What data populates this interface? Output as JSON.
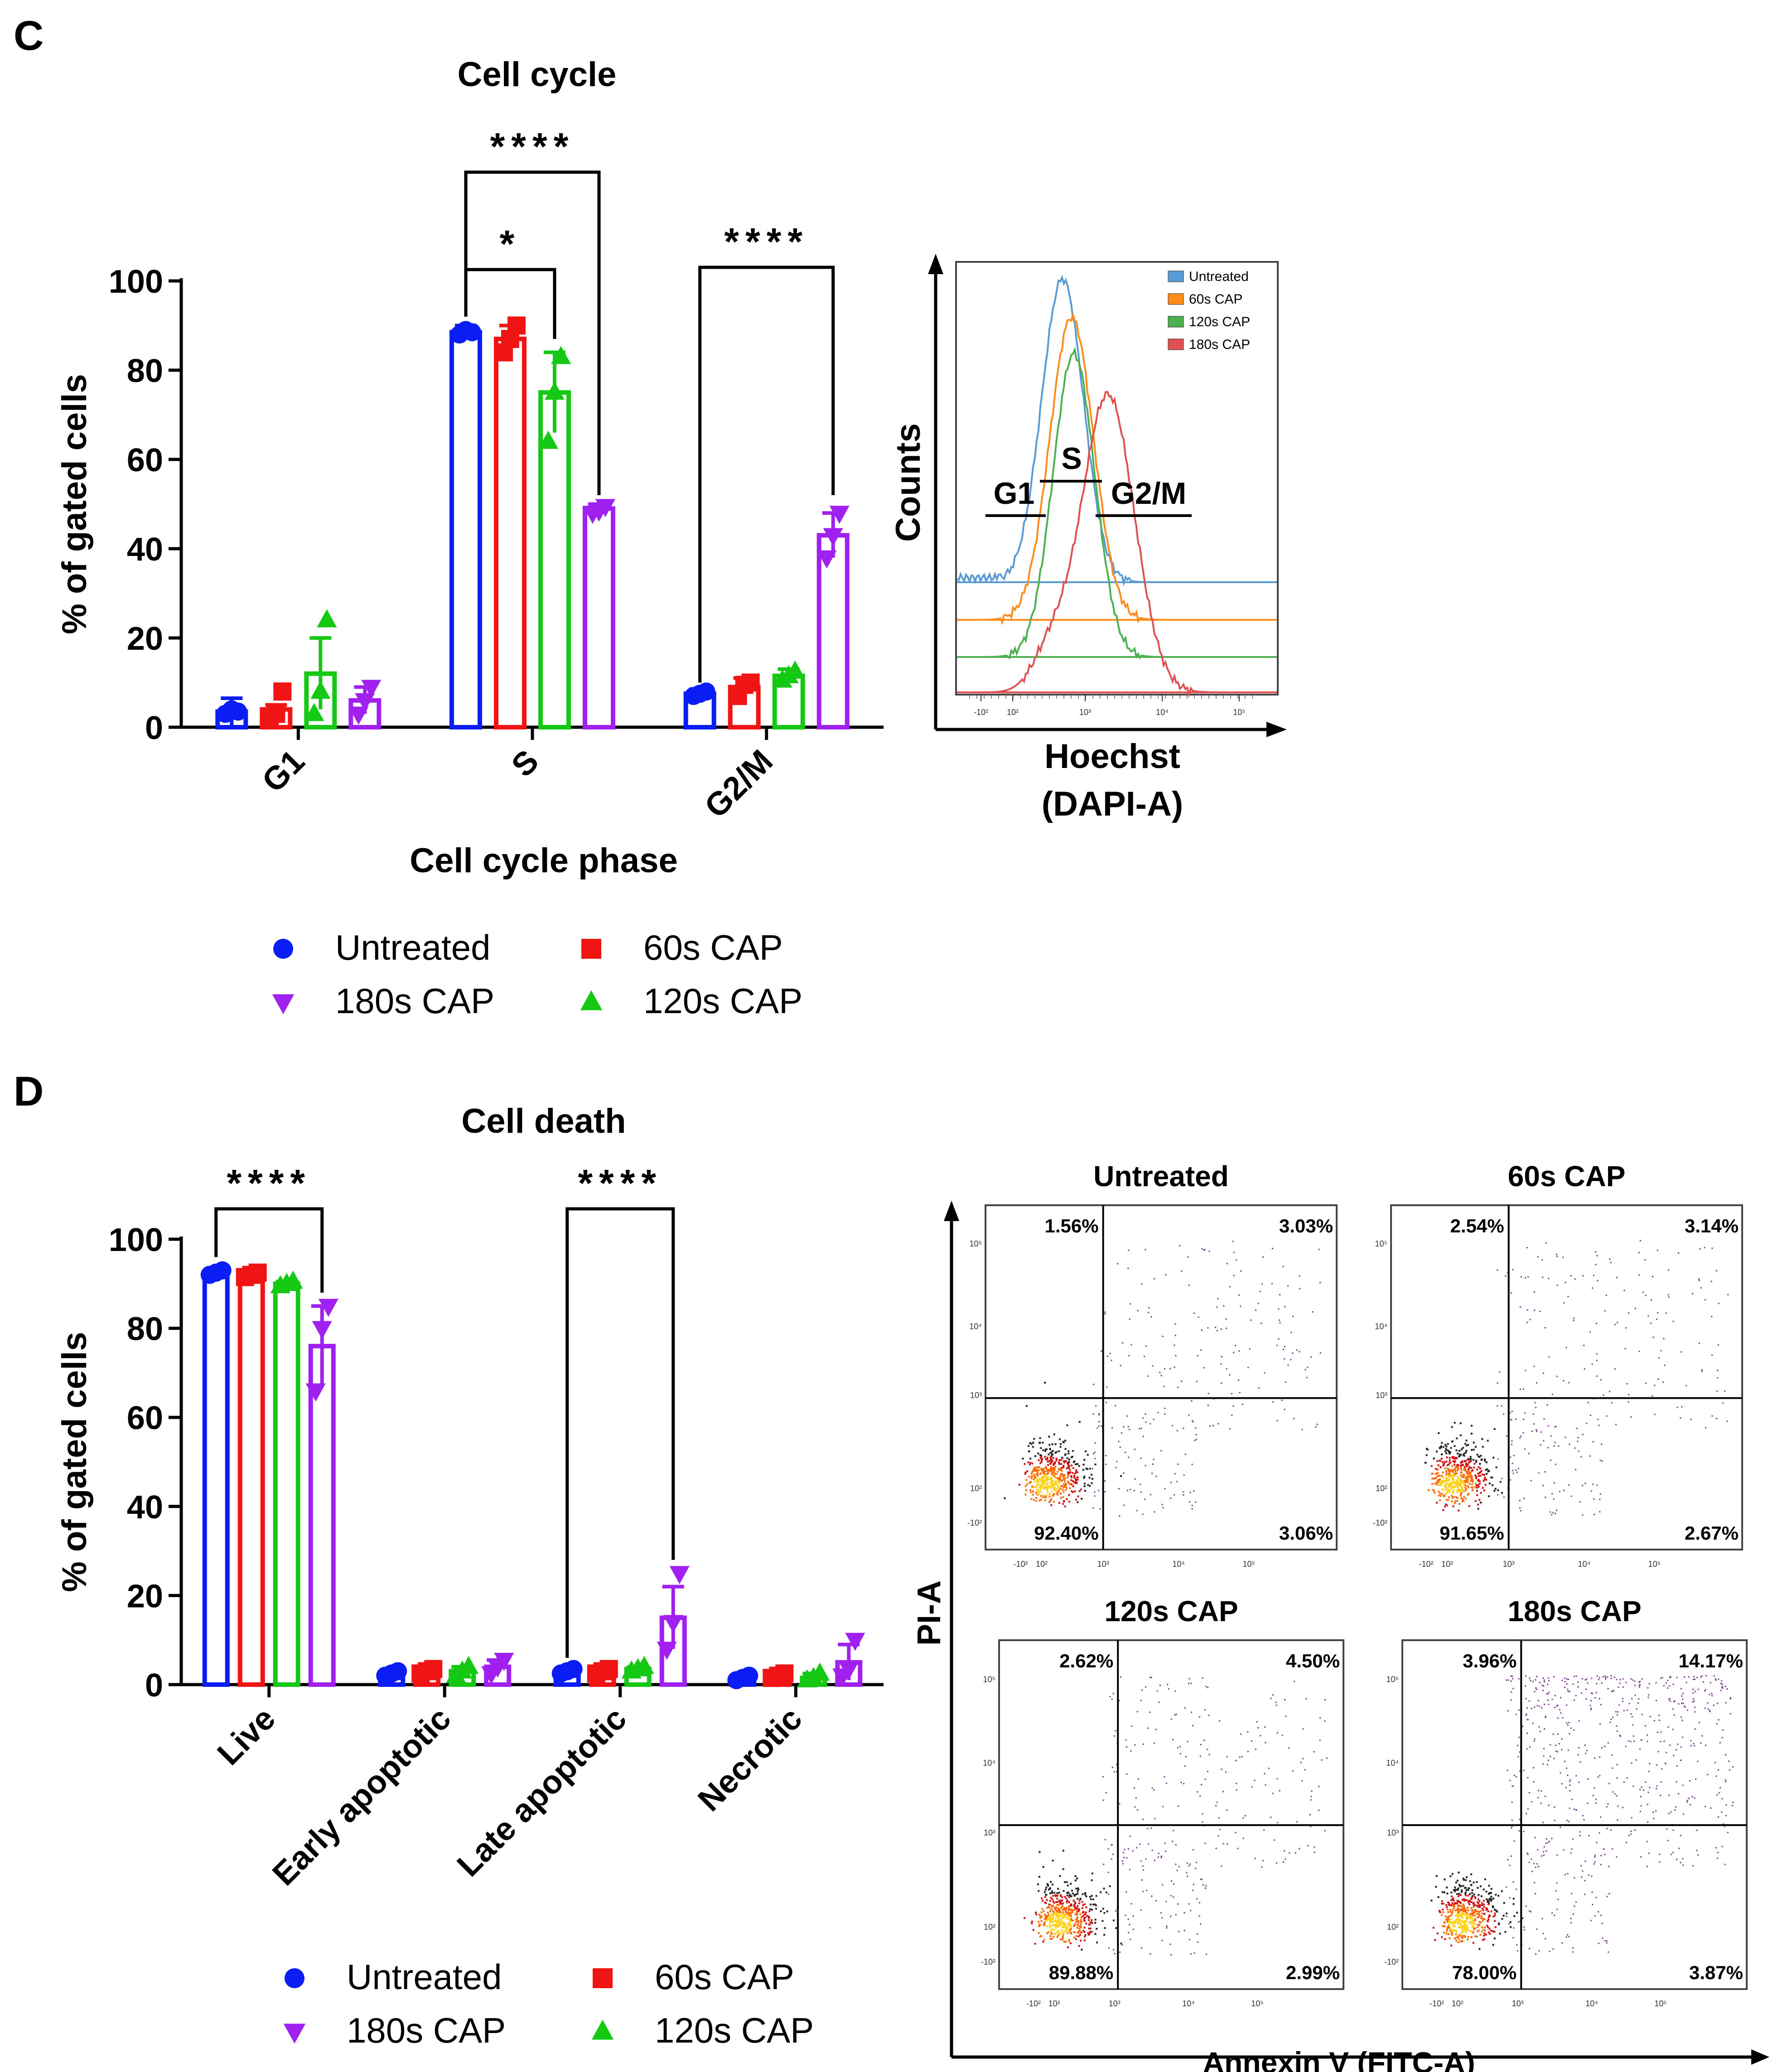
{
  "colors": {
    "untreated": "#0a1df5",
    "cap60": "#f01414",
    "cap120": "#14c814",
    "cap180": "#a020f0",
    "hist_untreated": "#5b9bd5",
    "hist_60": "#ff8c1a",
    "hist_120": "#4caf50",
    "hist_180": "#e05050"
  },
  "panels": {
    "c": {
      "letter": "C"
    },
    "d": {
      "letter": "D"
    }
  },
  "legend": [
    "Untreated",
    "60s CAP",
    "180s CAP",
    "120s CAP"
  ],
  "chart_data": [
    {
      "id": "cell-cycle",
      "type": "bar",
      "title": "Cell cycle",
      "xlabel": "Cell cycle phase",
      "ylabel": "% of gated cells",
      "ylim": [
        0,
        100
      ],
      "yticks": [
        0,
        20,
        40,
        60,
        80,
        100
      ],
      "categories": [
        "G1",
        "S",
        "G2/M"
      ],
      "series": [
        {
          "name": "Untreated",
          "values": [
            3.5,
            88.5,
            7.5
          ],
          "points": [
            [
              3,
              4,
              3.5
            ],
            [
              88,
              89,
              88.5
            ],
            [
              7,
              7.5,
              8
            ]
          ]
        },
        {
          "name": "60s CAP",
          "values": [
            4,
            87,
            9
          ],
          "points": [
            [
              2,
              3,
              8
            ],
            [
              84,
              87,
              90
            ],
            [
              7,
              9.5,
              10
            ]
          ]
        },
        {
          "name": "120s CAP",
          "values": [
            12,
            75,
            11.5
          ],
          "points": [
            [
              3,
              8,
              24
            ],
            [
              64,
              75,
              83
            ],
            [
              10.5,
              11.5,
              12.5
            ]
          ]
        },
        {
          "name": "180s CAP",
          "values": [
            6,
            49,
            43
          ],
          "points": [
            [
              3,
              6,
              9
            ],
            [
              48,
              48.5,
              49.5
            ],
            [
              38,
              43,
              48
            ]
          ]
        }
      ],
      "errors": [
        [
          3,
          1.5,
          1
        ],
        [
          1,
          3,
          2
        ],
        [
          8,
          9,
          1.5
        ],
        [
          3,
          1,
          5
        ]
      ],
      "significance": [
        {
          "label": "****",
          "from": "Untreated",
          "to": "180s CAP",
          "category": "S"
        },
        {
          "label": "*",
          "from": "Untreated",
          "to": "120s CAP",
          "category": "S"
        },
        {
          "label": "****",
          "from": "Untreated",
          "to": "180s CAP",
          "category": "G2/M"
        }
      ]
    },
    {
      "id": "cell-death",
      "type": "bar",
      "title": "Cell death",
      "xlabel": "",
      "ylabel": "% of gated cells",
      "ylim": [
        0,
        100
      ],
      "yticks": [
        0,
        20,
        40,
        60,
        80,
        100
      ],
      "categories": [
        "Live",
        "Early apoptotic",
        "Late apoptotic",
        "Necrotic"
      ],
      "series": [
        {
          "name": "Untreated",
          "values": [
            92.5,
            2.5,
            3,
            1.5
          ],
          "points": [
            [
              92,
              92.5,
              93
            ],
            [
              2,
              2.5,
              3
            ],
            [
              2.5,
              3,
              3.5
            ],
            [
              1,
              1.5,
              2
            ]
          ]
        },
        {
          "name": "60s CAP",
          "values": [
            92,
            3,
            3,
            2
          ],
          "points": [
            [
              91.5,
              92,
              92.5
            ],
            [
              2.5,
              3,
              3.5
            ],
            [
              2.5,
              3,
              3.5
            ],
            [
              1.5,
              2,
              2.5
            ]
          ]
        },
        {
          "name": "120s CAP",
          "values": [
            90,
            3,
            3.5,
            1.5
          ],
          "points": [
            [
              89.5,
              90,
              90.5
            ],
            [
              2,
              3,
              4
            ],
            [
              3,
              3.5,
              4
            ],
            [
              1,
              1.5,
              2.5
            ]
          ]
        },
        {
          "name": "180s CAP",
          "values": [
            76,
            4,
            15,
            5
          ],
          "points": [
            [
              66,
              80,
              85
            ],
            [
              2.5,
              4,
              5.5
            ],
            [
              8,
              14,
              25
            ],
            [
              2,
              3.5,
              10
            ]
          ]
        }
      ],
      "errors": [
        [
          0.5,
          0.5,
          0.5,
          0.5
        ],
        [
          0.5,
          0.5,
          0.5,
          0.5
        ],
        [
          0.5,
          1,
          0.5,
          1
        ],
        [
          9,
          1.5,
          7,
          4
        ]
      ],
      "significance": [
        {
          "label": "****",
          "from": "Untreated",
          "to": "180s CAP",
          "category": "Live"
        },
        {
          "label": "****",
          "from": "Untreated",
          "to": "180s CAP",
          "category": "Late apoptotic"
        }
      ]
    },
    {
      "id": "dapi-histogram",
      "type": "line",
      "xlabel": [
        "Hoechst",
        "(DAPI-A)"
      ],
      "ylabel": "Counts",
      "legend": [
        "Untreated",
        "60s CAP",
        "120s CAP",
        "180s CAP"
      ],
      "gates": [
        "G1",
        "S",
        "G2/M"
      ],
      "x_ticks": [
        "-10²",
        "10²",
        "10³",
        "10⁴",
        "10⁵"
      ],
      "series": [
        {
          "name": "Untreated",
          "peak_x": 2.2,
          "peak_y": 1.0
        },
        {
          "name": "60s CAP",
          "peak_x": 2.3,
          "peak_y": 0.93
        },
        {
          "name": "120s CAP",
          "peak_x": 2.3,
          "peak_y": 0.88
        },
        {
          "name": "180s CAP",
          "peak_x": 3.1,
          "peak_y": 0.78
        }
      ]
    },
    {
      "id": "annexin-pi",
      "type": "scatter",
      "xlabel": "Annexin V (FITC-A)",
      "ylabel": "PI-A",
      "axis_ticks": [
        "-10²",
        "10²",
        "10³",
        "10⁴",
        "10⁵"
      ],
      "plots": [
        {
          "title": "Untreated",
          "q_ul": "1.56%",
          "q_ur": "3.03%",
          "q_ll": "92.40%",
          "q_lr": "3.06%"
        },
        {
          "title": "60s CAP",
          "q_ul": "2.54%",
          "q_ur": "3.14%",
          "q_ll": "91.65%",
          "q_lr": "2.67%"
        },
        {
          "title": "120s CAP",
          "q_ul": "2.62%",
          "q_ur": "4.50%",
          "q_ll": "89.88%",
          "q_lr": "2.99%"
        },
        {
          "title": "180s CAP",
          "q_ul": "3.96%",
          "q_ur": "14.17%",
          "q_ll": "78.00%",
          "q_lr": "3.87%"
        }
      ]
    }
  ]
}
